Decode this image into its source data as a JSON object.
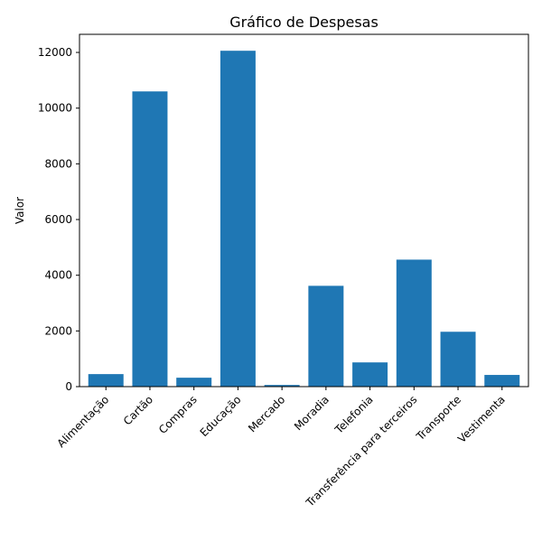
{
  "chart_data": {
    "type": "bar",
    "title": "Gráfico de Despesas",
    "xlabel": "",
    "ylabel": "Valor",
    "categories": [
      "Alimentação",
      "Cartão",
      "Compras",
      "Educação",
      "Mercado",
      "Moradia",
      "Telefonia",
      "Transferência para terceiros",
      "Transporte",
      "Vestimenta"
    ],
    "values": [
      450,
      10600,
      320,
      12060,
      60,
      3620,
      870,
      4560,
      1970,
      420
    ],
    "ylim": [
      0,
      12650
    ],
    "yticks": [
      0,
      2000,
      4000,
      6000,
      8000,
      10000,
      12000
    ],
    "yticks_labels": [
      "0",
      "2000",
      "4000",
      "6000",
      "8000",
      "10000",
      "12000"
    ],
    "grid": false,
    "bar_color": "#1f77b4"
  }
}
